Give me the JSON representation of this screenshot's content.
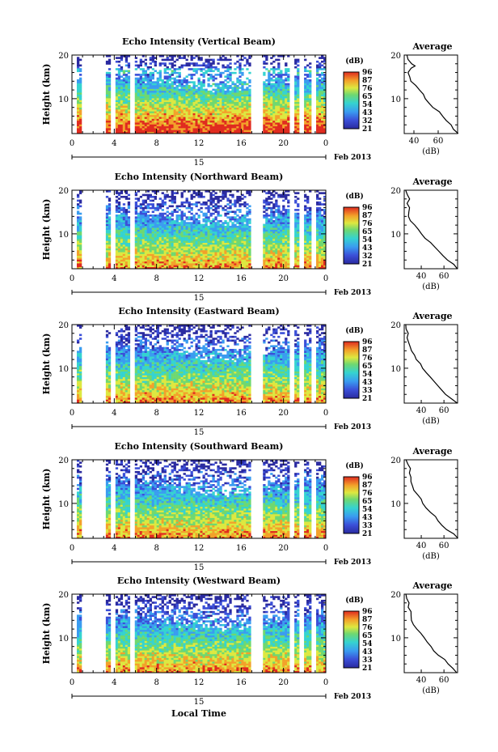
{
  "chart_data": [
    {
      "type": "heatmap",
      "title": "Echo Intensity (Vertical Beam)",
      "ylabel": "Height (km)",
      "xlim": [
        0,
        24
      ],
      "ylim": [
        2,
        20
      ],
      "x_ticks": [
        "0",
        "4",
        "8",
        "12",
        "16",
        "20",
        "0"
      ],
      "y_ticks": [
        "10",
        "20"
      ],
      "date_mark": "15",
      "date_label": "Feb 2013",
      "colorbar": {
        "title": "(dB)",
        "ticks": [
          "96",
          "87",
          "76",
          "65",
          "54",
          "43",
          "32",
          "21"
        ],
        "range": [
          21,
          96
        ]
      },
      "profile": {
        "title": "Average",
        "xlabel": "(dB)",
        "x_ticks": [
          "40",
          "60"
        ],
        "xlim": [
          32,
          76
        ],
        "ylim": [
          2,
          20
        ],
        "points": [
          [
            76,
            2
          ],
          [
            73,
            3
          ],
          [
            70,
            4
          ],
          [
            67,
            5
          ],
          [
            63,
            6
          ],
          [
            60,
            7
          ],
          [
            56,
            8
          ],
          [
            53,
            9
          ],
          [
            50,
            10
          ],
          [
            47,
            11
          ],
          [
            44,
            12
          ],
          [
            41,
            13
          ],
          [
            38,
            14
          ],
          [
            37,
            15
          ],
          [
            36,
            16
          ],
          [
            38,
            17
          ],
          [
            41,
            17.5
          ],
          [
            39,
            18
          ],
          [
            36,
            19
          ],
          [
            34,
            20
          ]
        ]
      }
    },
    {
      "type": "heatmap",
      "title": "Echo Intensity (Northward Beam)",
      "ylabel": "Height (km)",
      "xlim": [
        0,
        24
      ],
      "ylim": [
        2,
        20
      ],
      "x_ticks": [
        "0",
        "4",
        "8",
        "12",
        "16",
        "20",
        "0"
      ],
      "y_ticks": [
        "10",
        "20"
      ],
      "date_mark": "15",
      "date_label": "Feb 2013",
      "colorbar": {
        "title": "(dB)",
        "ticks": [
          "96",
          "87",
          "76",
          "65",
          "54",
          "43",
          "32",
          "21"
        ],
        "range": [
          21,
          96
        ]
      },
      "profile": {
        "title": "Average",
        "xlabel": "(dB)",
        "x_ticks": [
          "40",
          "60"
        ],
        "xlim": [
          25,
          72
        ],
        "ylim": [
          2,
          20
        ],
        "points": [
          [
            72,
            2
          ],
          [
            68,
            3
          ],
          [
            64,
            4
          ],
          [
            60,
            5
          ],
          [
            56,
            6
          ],
          [
            52,
            7
          ],
          [
            48,
            8
          ],
          [
            44,
            9
          ],
          [
            40,
            10
          ],
          [
            37,
            11
          ],
          [
            34,
            12
          ],
          [
            31,
            13
          ],
          [
            29,
            14
          ],
          [
            29,
            15
          ],
          [
            30,
            16
          ],
          [
            28,
            17
          ],
          [
            29,
            18
          ],
          [
            27,
            19
          ],
          [
            26,
            20
          ]
        ]
      }
    },
    {
      "type": "heatmap",
      "title": "Echo Intensity (Eastward Beam)",
      "ylabel": "Height (km)",
      "xlim": [
        0,
        24
      ],
      "ylim": [
        2,
        20
      ],
      "x_ticks": [
        "0",
        "4",
        "8",
        "12",
        "16",
        "20",
        "0"
      ],
      "y_ticks": [
        "10",
        "20"
      ],
      "date_mark": "15",
      "date_label": "Feb 2013",
      "colorbar": {
        "title": "(dB)",
        "ticks": [
          "96",
          "87",
          "76",
          "65",
          "54",
          "43",
          "33",
          "21"
        ],
        "range": [
          21,
          96
        ]
      },
      "profile": {
        "title": "Average",
        "xlabel": "(dB)",
        "x_ticks": [
          "40",
          "60"
        ],
        "xlim": [
          25,
          72
        ],
        "ylim": [
          2,
          20
        ],
        "points": [
          [
            72,
            2
          ],
          [
            66,
            3
          ],
          [
            62,
            4
          ],
          [
            59,
            5
          ],
          [
            55,
            6
          ],
          [
            52,
            7
          ],
          [
            48,
            8
          ],
          [
            45,
            9
          ],
          [
            42,
            10
          ],
          [
            39,
            11
          ],
          [
            36,
            12
          ],
          [
            33,
            13
          ],
          [
            31,
            14
          ],
          [
            30,
            15
          ],
          [
            29,
            16
          ],
          [
            28,
            17
          ],
          [
            29,
            18
          ],
          [
            27,
            19
          ],
          [
            26,
            20
          ]
        ]
      }
    },
    {
      "type": "heatmap",
      "title": "Echo Intensity (Southward Beam)",
      "ylabel": "Height (km)",
      "xlim": [
        0,
        24
      ],
      "ylim": [
        2,
        20
      ],
      "x_ticks": [
        "0",
        "4",
        "8",
        "12",
        "16",
        "20",
        "0"
      ],
      "y_ticks": [
        "10",
        "20"
      ],
      "date_mark": "15",
      "date_label": "Feb 2013",
      "colorbar": {
        "title": "(dB)",
        "ticks": [
          "96",
          "87",
          "76",
          "65",
          "54",
          "43",
          "33",
          "21"
        ],
        "range": [
          21,
          96
        ]
      },
      "profile": {
        "title": "Average",
        "xlabel": "(dB)",
        "x_ticks": [
          "40",
          "60"
        ],
        "xlim": [
          25,
          72
        ],
        "ylim": [
          2,
          20
        ],
        "points": [
          [
            72,
            2
          ],
          [
            68,
            3
          ],
          [
            63,
            4
          ],
          [
            59,
            5
          ],
          [
            55,
            6
          ],
          [
            52,
            7
          ],
          [
            48,
            8
          ],
          [
            45,
            9
          ],
          [
            42,
            10
          ],
          [
            39,
            11
          ],
          [
            37,
            12
          ],
          [
            34,
            13
          ],
          [
            32,
            14
          ],
          [
            30,
            15
          ],
          [
            31,
            16
          ],
          [
            29,
            17
          ],
          [
            30,
            18
          ],
          [
            28,
            19
          ],
          [
            27,
            20
          ]
        ]
      }
    },
    {
      "type": "heatmap",
      "title": "Echo Intensity (Westward Beam)",
      "ylabel": "Height (km)",
      "xlabel": "Local Time",
      "xlim": [
        0,
        24
      ],
      "ylim": [
        2,
        20
      ],
      "x_ticks": [
        "0",
        "4",
        "8",
        "12",
        "16",
        "20",
        "0"
      ],
      "y_ticks": [
        "10",
        "20"
      ],
      "date_mark": "15",
      "date_label": "Feb 2013",
      "colorbar": {
        "title": "(dB)",
        "ticks": [
          "96",
          "87",
          "76",
          "65",
          "54",
          "43",
          "33",
          "21"
        ],
        "range": [
          21,
          96
        ]
      },
      "profile": {
        "title": "Average",
        "xlabel": "(dB)",
        "x_ticks": [
          "40",
          "60"
        ],
        "xlim": [
          25,
          72
        ],
        "ylim": [
          2,
          20
        ],
        "points": [
          [
            72,
            2
          ],
          [
            68,
            3
          ],
          [
            64,
            4
          ],
          [
            60,
            5
          ],
          [
            56,
            6
          ],
          [
            52,
            7
          ],
          [
            48,
            8
          ],
          [
            45,
            9
          ],
          [
            42,
            10
          ],
          [
            39,
            11
          ],
          [
            36,
            12
          ],
          [
            34,
            13
          ],
          [
            32,
            14
          ],
          [
            30,
            15
          ],
          [
            31,
            16
          ],
          [
            29,
            17
          ],
          [
            29,
            18
          ],
          [
            28,
            19
          ],
          [
            27,
            20
          ]
        ]
      }
    }
  ]
}
